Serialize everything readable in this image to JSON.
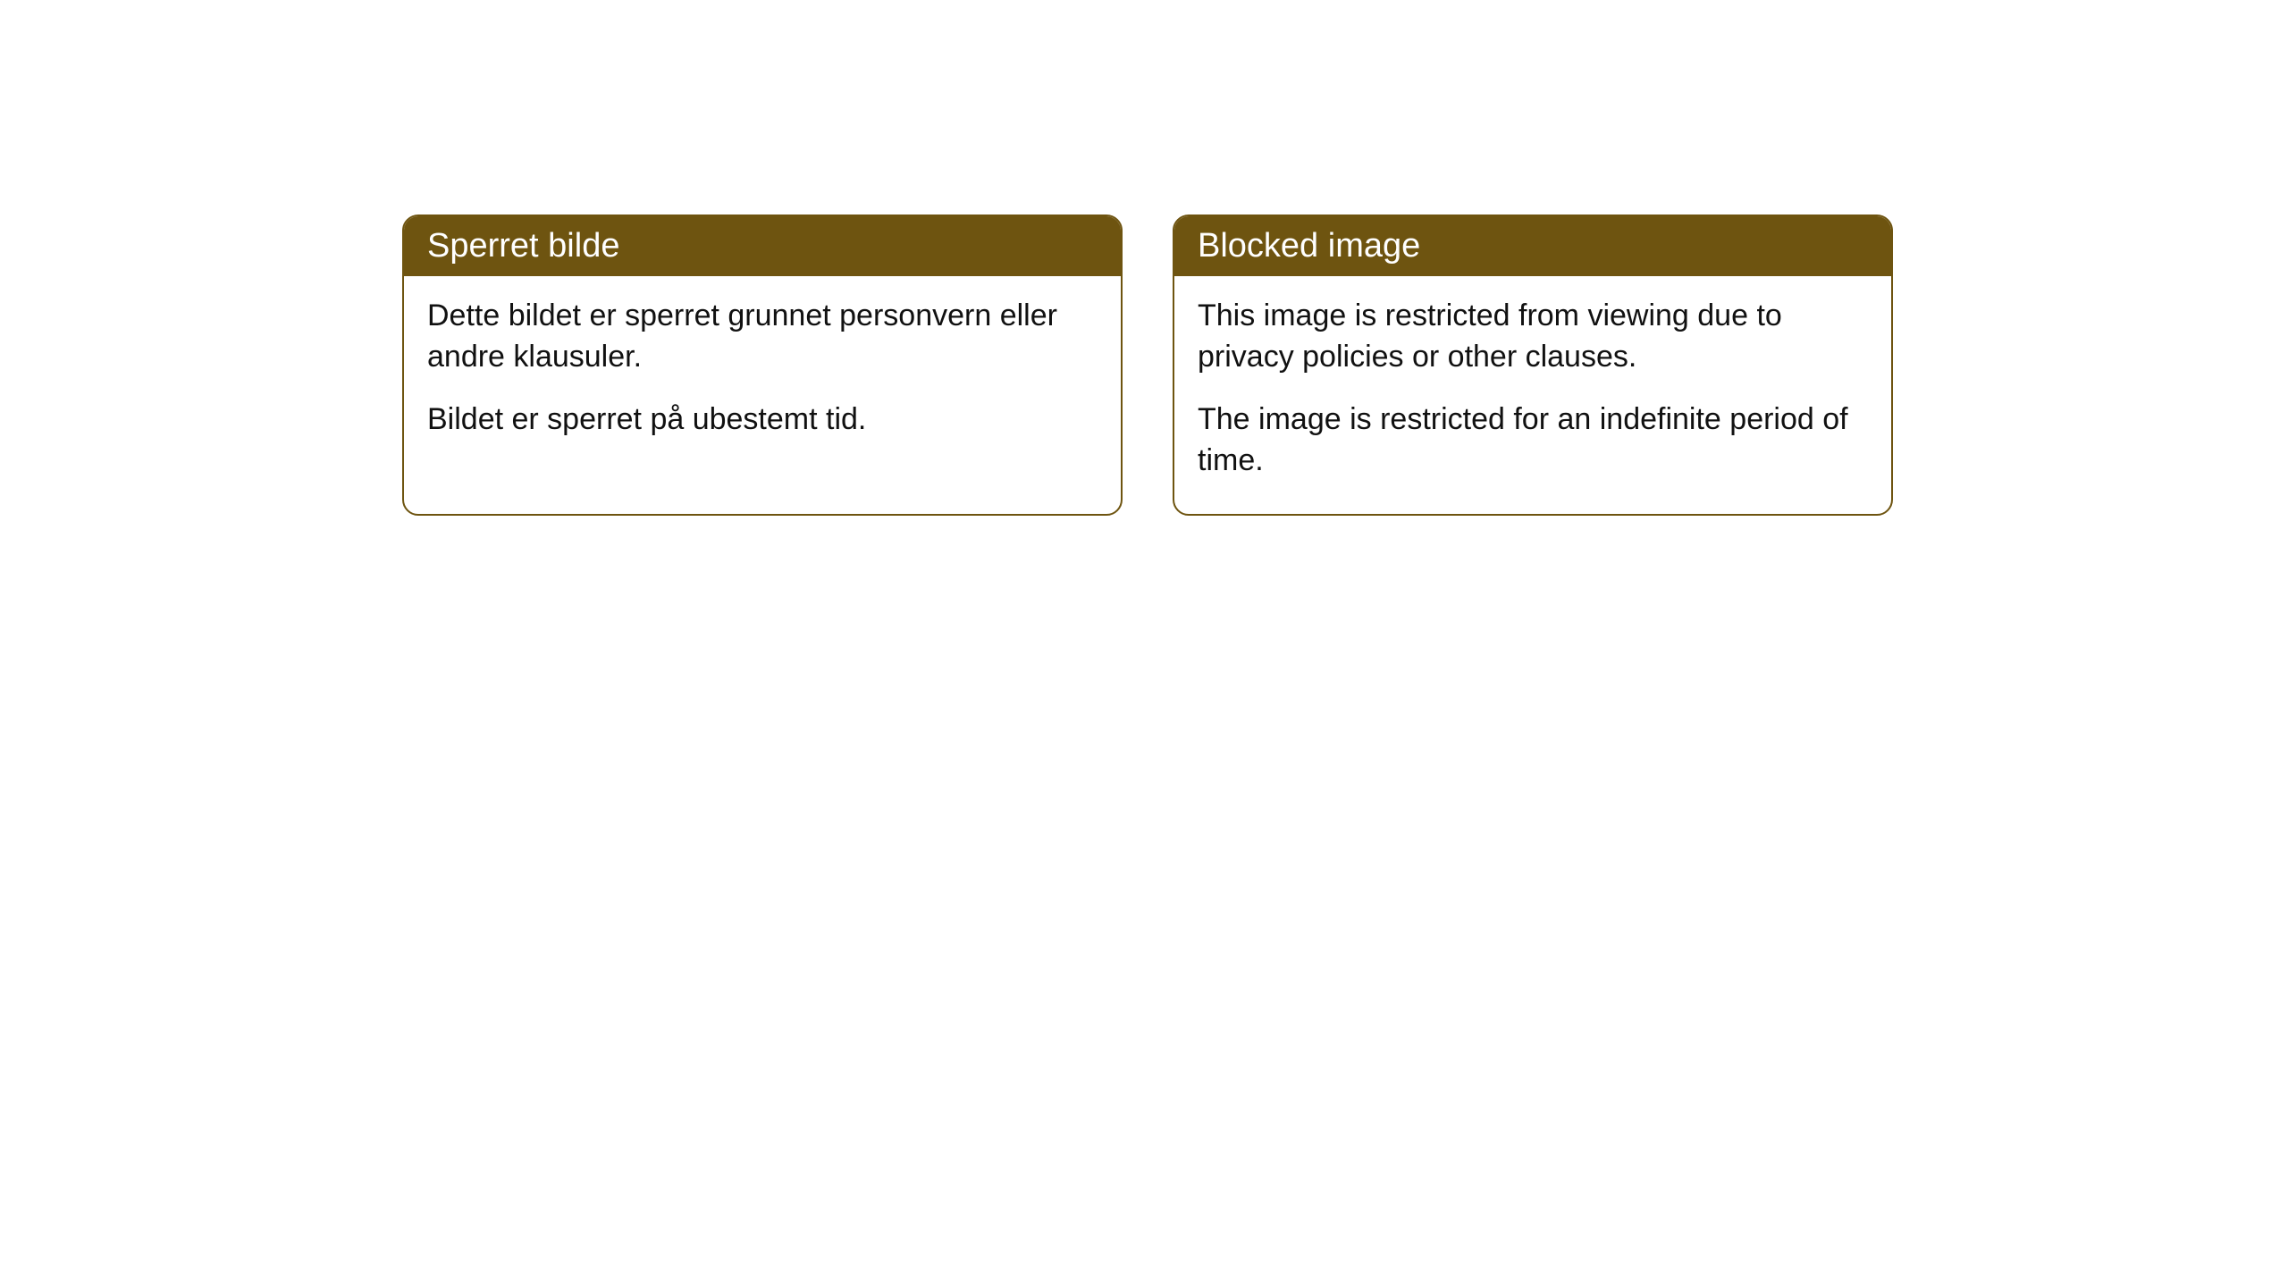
{
  "cards": [
    {
      "title": "Sperret bilde",
      "para1": "Dette bildet er sperret grunnet personvern eller andre klausuler.",
      "para2": "Bildet er sperret på ubestemt tid."
    },
    {
      "title": "Blocked image",
      "para1": "This image is restricted from viewing due to privacy policies or other clauses.",
      "para2": "The image is restricted for an indefinite period of time."
    }
  ],
  "style": {
    "header_bg": "#6e5410",
    "header_text_color": "#ffffff",
    "border_color": "#6e5410",
    "body_text_color": "#111111",
    "card_bg": "#ffffff",
    "page_bg": "#ffffff",
    "title_fontsize": 38,
    "body_fontsize": 34,
    "border_radius": 18
  }
}
